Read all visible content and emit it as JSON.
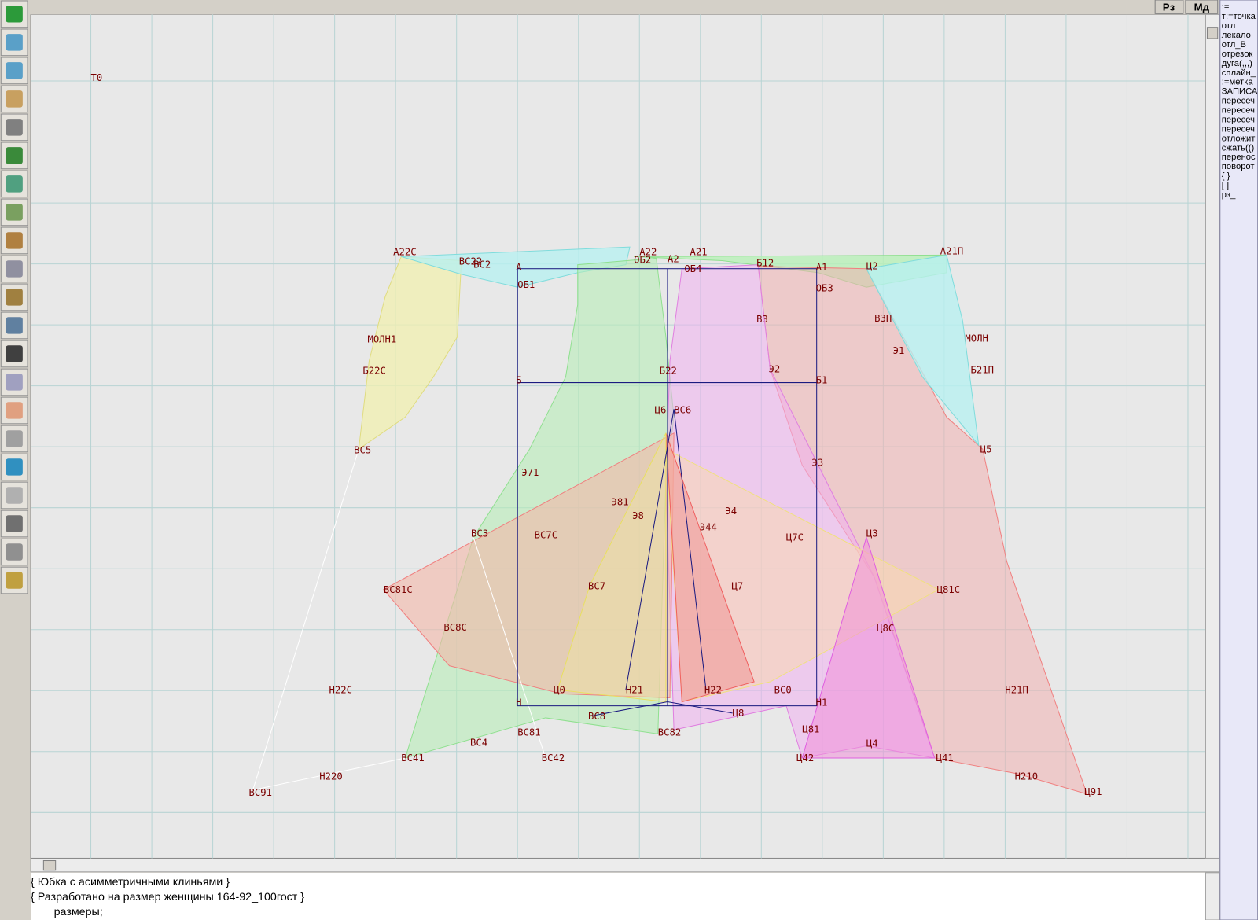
{
  "toolbar": {
    "buttons": [
      "Рз",
      "Мд"
    ]
  },
  "canvas": {
    "point_labels": [
      "Т0",
      "А22С",
      "ВС22",
      "ВС2",
      "А",
      "ОБ2",
      "А22",
      "А2",
      "А21",
      "Б12",
      "А1",
      "Ц2",
      "А21П",
      "ОБ1",
      "ОБ4",
      "ОБ3",
      "В3",
      "В3П",
      "МОЛН1",
      "МОЛН",
      "Б22С",
      "Б21П",
      "Б",
      "Б1",
      "Б22",
      "Э2",
      "Э1",
      "ВС5",
      "Ц5",
      "Ц6",
      "ВС6",
      "Э3",
      "Э71",
      "Э8",
      "Э81",
      "Э4",
      "Э44",
      "ВС3",
      "ВС7С",
      "Ц7С",
      "Ц3",
      "ВС81С",
      "ВС7",
      "Ц7",
      "Ц81С",
      "ВС8С",
      "Ц8С",
      "Н22С",
      "Ц0",
      "Н21",
      "Н22",
      "ВС0",
      "Н21П",
      "Н",
      "Н1",
      "ВС8",
      "Ц8",
      "ВС81",
      "ВС82",
      "Ц81",
      "ВС4",
      "Ц4",
      "ВС41",
      "ВС42",
      "Ц42",
      "Ц41",
      "Н220",
      "Н210",
      "ВС91",
      "Ц91"
    ]
  },
  "commands": [
    ":=",
    "т:=точка",
    "отл",
    "лекало",
    "отл_В",
    "отрезок",
    "дуга(,,,)",
    "сплайн_",
    ":=метка",
    "ЗАПИСА",
    "пересеч",
    "пересеч",
    "пересеч",
    "пересеч",
    "отложит",
    "сжать(()",
    "перенос",
    "поворот",
    "{ }",
    "[ ]",
    "рз_"
  ],
  "editor": {
    "lines": [
      "{ Юбка с асимметричными клиньями  }",
      "{ Разработано на размер женщины 164-92_100гост }",
      "размеры;"
    ]
  }
}
